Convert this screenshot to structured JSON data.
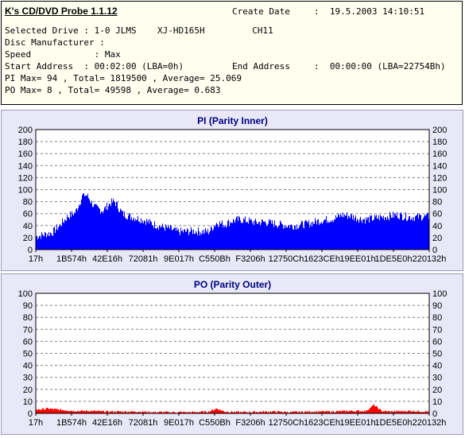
{
  "header": {
    "app_title": "K's CD/DVD Probe 1.1.12",
    "create_date_label": "Create Date",
    "create_date_value": ":  19.5.2003 14:10:51",
    "drive_line": "Selected Drive : 1-0 JLMS    XJ-HD165H         CH11",
    "manufacturer_line": "Disc Manufacturer :",
    "speed_line": "Speed            : Max",
    "start_line": "Start Address  : 00:02:00 (LBA=0h)",
    "end_label": "End Address",
    "end_value": ":  00:00:00 (LBA=22754Bh)",
    "pi_line": "PI Max= 94 , Total= 1819500 , Average= 25.069",
    "po_line": "PO Max= 8 , Total= 49598 , Average= 0.683"
  },
  "colors": {
    "pi": "#0000ff",
    "po": "#ff0000",
    "title": "#000080",
    "grid": "#808080"
  },
  "chart_data": [
    {
      "type": "area",
      "title": "PI (Parity Inner)",
      "ylim": [
        0,
        200
      ],
      "yticks": [
        0,
        20,
        40,
        60,
        80,
        100,
        120,
        140,
        160,
        180,
        200
      ],
      "xtick_labels": [
        "17h",
        "1B574h",
        "42E16h",
        "72081h",
        "9E017h",
        "C550Bh",
        "F3206h",
        "12750Ch",
        "1623CEh",
        "19EE01h",
        "1DE5E0h",
        "220132h"
      ],
      "grid": true,
      "series": [
        {
          "color": "#0000ff",
          "envelope_x": [
            0,
            0.02,
            0.04,
            0.06,
            0.08,
            0.1,
            0.12,
            0.13,
            0.15,
            0.17,
            0.19,
            0.2,
            0.22,
            0.24,
            0.26,
            0.28,
            0.3,
            0.32,
            0.34,
            0.36,
            0.38,
            0.4,
            0.42,
            0.44,
            0.46,
            0.48,
            0.5,
            0.52,
            0.54,
            0.56,
            0.58,
            0.6,
            0.62,
            0.64,
            0.66,
            0.68,
            0.7,
            0.72,
            0.74,
            0.76,
            0.78,
            0.8,
            0.82,
            0.84,
            0.86,
            0.88,
            0.9,
            0.92,
            0.94,
            0.96,
            0.98,
            1.0
          ],
          "envelope_y": [
            22,
            25,
            28,
            40,
            55,
            62,
            92,
            90,
            70,
            65,
            78,
            80,
            60,
            55,
            52,
            48,
            42,
            38,
            35,
            30,
            30,
            31,
            30,
            30,
            45,
            42,
            48,
            50,
            48,
            45,
            46,
            44,
            42,
            40,
            40,
            42,
            44,
            48,
            50,
            52,
            58,
            56,
            52,
            50,
            52,
            54,
            56,
            58,
            55,
            54,
            55,
            55
          ],
          "max": 94
        }
      ]
    },
    {
      "type": "area",
      "title": "PO (Parity Outer)",
      "ylim": [
        0,
        100
      ],
      "yticks": [
        0,
        10,
        20,
        30,
        40,
        50,
        60,
        70,
        80,
        90,
        100
      ],
      "xtick_labels": [
        "17h",
        "1B574h",
        "42E16h",
        "72081h",
        "9E017h",
        "C550Bh",
        "F3206h",
        "12750Ch",
        "1623CEh",
        "19EE01h",
        "1DE5E0h",
        "220132h"
      ],
      "grid": true,
      "series": [
        {
          "color": "#ff0000",
          "envelope_x": [
            0,
            0.03,
            0.06,
            0.1,
            0.14,
            0.18,
            0.22,
            0.26,
            0.3,
            0.35,
            0.4,
            0.44,
            0.46,
            0.48,
            0.52,
            0.6,
            0.65,
            0.7,
            0.75,
            0.8,
            0.84,
            0.86,
            0.88,
            0.9,
            0.95,
            1.0
          ],
          "envelope_y": [
            3,
            4,
            3,
            2,
            2,
            1.5,
            1.5,
            1.5,
            1,
            1,
            1,
            1.5,
            4,
            1.5,
            1,
            1.5,
            1,
            1.5,
            1.5,
            2,
            2,
            7,
            2,
            1.5,
            2,
            1.5
          ],
          "max": 8
        }
      ]
    }
  ]
}
